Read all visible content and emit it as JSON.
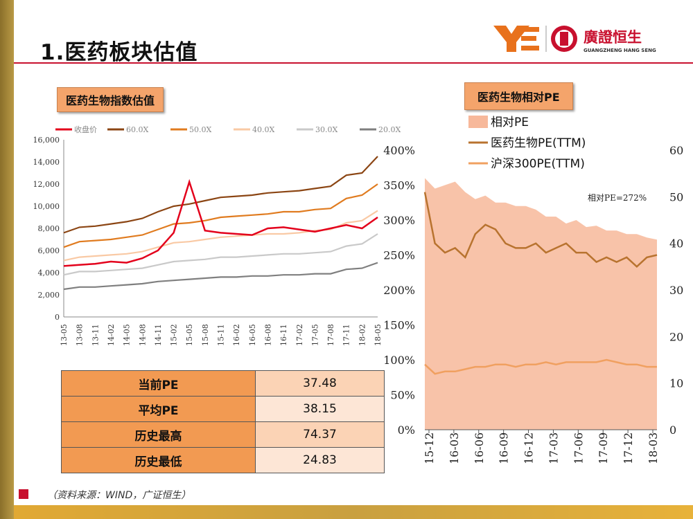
{
  "header": {
    "title": "1.医药板块估值"
  },
  "logo": {
    "name": "廣證恒生",
    "subtitle": "GUANGZHENG HANG SENG",
    "mark": "YE"
  },
  "colors": {
    "accent_red": "#c8102e",
    "label_fill": "#f4a46b",
    "gold_bar": "#b99a45"
  },
  "left_panel": {
    "title": "医药生物指数估值"
  },
  "right_panel": {
    "title": "医药生物相对PE",
    "annotation": "相对PE=272%"
  },
  "pe_table": {
    "rows": [
      {
        "label": "当前PE",
        "value": "37.48"
      },
      {
        "label": "平均PE",
        "value": "38.15"
      },
      {
        "label": "历史最高",
        "value": "74.37"
      },
      {
        "label": "历史最低",
        "value": "24.83"
      }
    ]
  },
  "footer": {
    "source": "（资料来源：WIND，广证恒生）"
  },
  "chart_data": [
    {
      "type": "line",
      "legend_position": "top",
      "grid": false,
      "ylim": [
        0,
        16000
      ],
      "yticks": [
        "0",
        "2,000",
        "4,000",
        "6,000",
        "8,000",
        "10,000",
        "12,000",
        "14,000",
        "16,000"
      ],
      "xticks": [
        "13-05",
        "13-08",
        "13-11",
        "14-02",
        "14-05",
        "14-08",
        "14-11",
        "15-02",
        "15-05",
        "15-08",
        "15-11",
        "16-02",
        "16-05",
        "16-08",
        "16-11",
        "17-02",
        "17-05",
        "17-08",
        "17-11",
        "18-02",
        "18-05"
      ],
      "series": [
        {
          "name": "收盘价",
          "color": "#e3001b",
          "values": [
            4600,
            4700,
            4800,
            5000,
            4900,
            5300,
            6000,
            7600,
            12200,
            7800,
            7600,
            7500,
            7400,
            8000,
            8100,
            7900,
            7700,
            8000,
            8300,
            8000,
            9000
          ]
        },
        {
          "name": "60.0X",
          "color": "#8b4513",
          "values": [
            7600,
            8100,
            8200,
            8400,
            8600,
            8900,
            9500,
            10000,
            10200,
            10500,
            10800,
            10900,
            11000,
            11200,
            11300,
            11400,
            11600,
            11800,
            12800,
            13000,
            14500
          ]
        },
        {
          "name": "50.0X",
          "color": "#e07b1f",
          "values": [
            6300,
            6800,
            6900,
            7000,
            7200,
            7400,
            7900,
            8400,
            8500,
            8700,
            9000,
            9100,
            9200,
            9300,
            9500,
            9500,
            9700,
            9800,
            10700,
            11000,
            12000
          ]
        },
        {
          "name": "40.0X",
          "color": "#f9c9a4",
          "values": [
            5100,
            5400,
            5500,
            5600,
            5700,
            5900,
            6300,
            6700,
            6800,
            7000,
            7200,
            7300,
            7400,
            7500,
            7500,
            7600,
            7800,
            7900,
            8500,
            8700,
            9600
          ]
        },
        {
          "name": "30.0X",
          "color": "#c9c9c9",
          "values": [
            3800,
            4100,
            4100,
            4200,
            4300,
            4400,
            4700,
            5000,
            5100,
            5200,
            5400,
            5400,
            5500,
            5600,
            5700,
            5700,
            5800,
            5900,
            6400,
            6600,
            7500
          ]
        },
        {
          "name": "20.0X",
          "color": "#7f7f7f",
          "values": [
            2500,
            2700,
            2700,
            2800,
            2900,
            3000,
            3200,
            3300,
            3400,
            3500,
            3600,
            3600,
            3700,
            3700,
            3800,
            3800,
            3900,
            3900,
            4300,
            4400,
            4900
          ]
        }
      ]
    },
    {
      "type": "area",
      "legend_position": "top-left",
      "grid": false,
      "ylim_left": [
        0,
        400
      ],
      "ylim_right": [
        0,
        60
      ],
      "yticks_left": [
        "0%",
        "50%",
        "100%",
        "150%",
        "200%",
        "250%",
        "300%",
        "350%",
        "400%"
      ],
      "yticks_right": [
        "0",
        "10",
        "20",
        "30",
        "40",
        "50",
        "60"
      ],
      "xticks": [
        "15-12",
        "16-03",
        "16-06",
        "16-09",
        "16-12",
        "17-03",
        "17-06",
        "17-09",
        "17-12",
        "18-03"
      ],
      "series": [
        {
          "name": "相对PE",
          "axis": "left",
          "color": "#f7b89a",
          "values": [
            360,
            345,
            350,
            355,
            340,
            330,
            335,
            325,
            325,
            320,
            320,
            315,
            305,
            305,
            295,
            300,
            290,
            292,
            285,
            285,
            280,
            280,
            275,
            272
          ]
        },
        {
          "name": "医药生物PE(TTM)",
          "axis": "right",
          "color": "#b8732f",
          "values": [
            51,
            40,
            38,
            39,
            37,
            42,
            44,
            43,
            40,
            39,
            39,
            40,
            38,
            39,
            40,
            38,
            38,
            36,
            37,
            36,
            37,
            35,
            37,
            37.5
          ]
        },
        {
          "name": "沪深300PE(TTM)",
          "axis": "right",
          "color": "#f0a060",
          "values": [
            14,
            12,
            12.5,
            12.5,
            13,
            13.5,
            13.5,
            14,
            14,
            13.5,
            14,
            14,
            14.5,
            14,
            14.5,
            14.5,
            14.5,
            14.5,
            15,
            14.5,
            14,
            14,
            13.5,
            13.5
          ]
        }
      ]
    }
  ]
}
